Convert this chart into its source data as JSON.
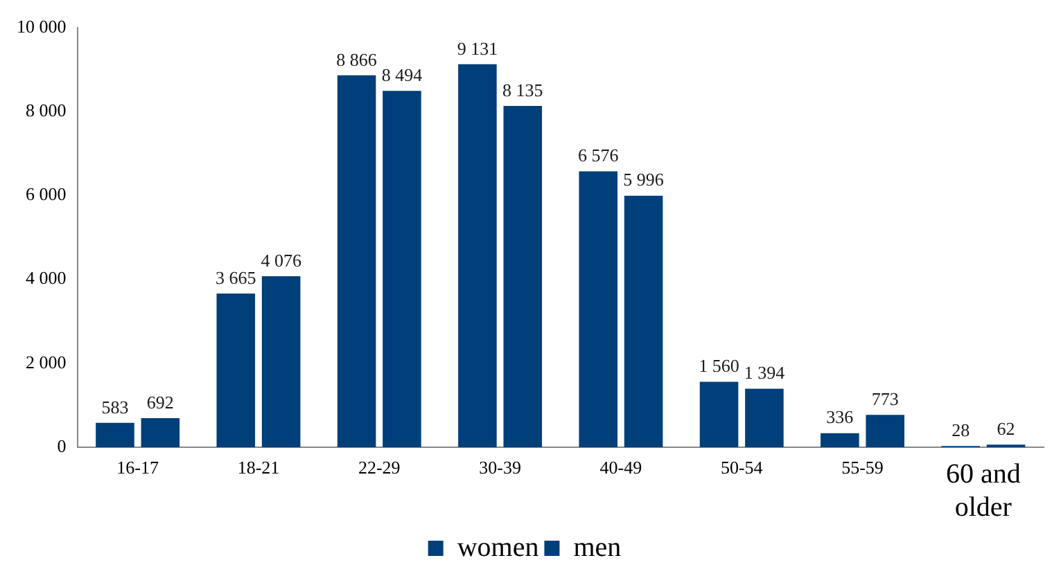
{
  "chart_data": {
    "type": "bar",
    "categories": [
      "16-17",
      "18-21",
      "22-29",
      "30-39",
      "40-49",
      "50-54",
      "55-59",
      "60 and older"
    ],
    "series": [
      {
        "name": "women",
        "color": "#003f7a",
        "values": [
          583,
          3665,
          8866,
          9131,
          6576,
          1560,
          336,
          28
        ],
        "value_labels": [
          "583",
          "3 665",
          "8 866",
          "9 131",
          "6 576",
          "1 560",
          "336",
          "28"
        ]
      },
      {
        "name": "men",
        "color": "#003f7a",
        "values": [
          692,
          4076,
          8494,
          8135,
          5996,
          1394,
          773,
          62
        ],
        "value_labels": [
          "692",
          "4 076",
          "8 494",
          "8 135",
          "5 996",
          "1 394",
          "773",
          "62"
        ]
      }
    ],
    "ylim": [
      0,
      10000
    ],
    "yticks": [
      0,
      {
        "value": 2000,
        "label": "2 000"
      },
      {
        "value": 4000,
        "label": "4 000"
      },
      {
        "value": 6000,
        "label": "6 000"
      },
      {
        "value": 8000,
        "label": "8 000"
      },
      {
        "value": 10000,
        "label": "10 000"
      }
    ],
    "grid": false,
    "legend": "bottom"
  }
}
